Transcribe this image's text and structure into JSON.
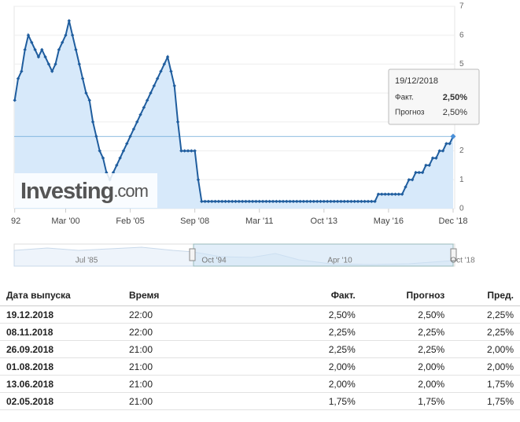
{
  "chart_data": {
    "type": "line",
    "categories": [
      "92",
      null,
      null,
      null,
      null,
      null,
      null,
      null,
      null,
      null,
      null,
      null,
      null,
      null,
      null,
      "Mar '00",
      null,
      null,
      null,
      null,
      null,
      null,
      null,
      null,
      null,
      null,
      null,
      null,
      null,
      null,
      null,
      null,
      null,
      null,
      "Feb '05",
      null,
      null,
      null,
      null,
      null,
      null,
      null,
      null,
      null,
      null,
      null,
      null,
      null,
      null,
      null,
      null,
      null,
      null,
      "Sep '08",
      null,
      null,
      null,
      null,
      null,
      null,
      null,
      null,
      null,
      null,
      null,
      null,
      null,
      null,
      null,
      null,
      null,
      null,
      "Mar '11",
      null,
      null,
      null,
      null,
      null,
      null,
      null,
      null,
      null,
      null,
      null,
      null,
      null,
      null,
      null,
      null,
      null,
      null,
      "Oct '13",
      null,
      null,
      null,
      null,
      null,
      null,
      null,
      null,
      null,
      null,
      null,
      null,
      null,
      null,
      null,
      null,
      null,
      null,
      "May '16",
      null,
      null,
      null,
      null,
      null,
      null,
      null,
      null,
      null,
      null,
      null,
      null,
      null,
      null,
      null,
      null,
      null,
      null,
      "Dec '18"
    ],
    "series": [
      {
        "color": "#1f5d9e",
        "values": [
          3.75,
          4.5,
          4.75,
          5.5,
          6.0,
          5.75,
          5.5,
          5.25,
          5.5,
          5.25,
          5.0,
          4.75,
          5.0,
          5.5,
          5.75,
          6.0,
          6.5,
          6.0,
          5.5,
          5.0,
          4.5,
          4.0,
          3.75,
          3.0,
          2.5,
          2.0,
          1.75,
          1.25,
          1.0,
          1.25,
          1.5,
          1.75,
          2.0,
          2.25,
          2.5,
          2.75,
          3.0,
          3.25,
          3.5,
          3.75,
          4.0,
          4.25,
          4.5,
          4.75,
          5.0,
          5.25,
          4.75,
          4.25,
          3.0,
          2.0,
          2.0,
          2.0,
          2.0,
          2.0,
          1.0,
          0.25,
          0.25,
          0.25,
          0.25,
          0.25,
          0.25,
          0.25,
          0.25,
          0.25,
          0.25,
          0.25,
          0.25,
          0.25,
          0.25,
          0.25,
          0.25,
          0.25,
          0.25,
          0.25,
          0.25,
          0.25,
          0.25,
          0.25,
          0.25,
          0.25,
          0.25,
          0.25,
          0.25,
          0.25,
          0.25,
          0.25,
          0.25,
          0.25,
          0.25,
          0.25,
          0.25,
          0.25,
          0.25,
          0.25,
          0.25,
          0.25,
          0.25,
          0.25,
          0.25,
          0.25,
          0.25,
          0.25,
          0.25,
          0.25,
          0.25,
          0.25,
          0.25,
          0.5,
          0.5,
          0.5,
          0.5,
          0.5,
          0.5,
          0.5,
          0.5,
          0.75,
          1.0,
          1.0,
          1.25,
          1.25,
          1.25,
          1.5,
          1.5,
          1.75,
          1.75,
          2.0,
          2.0,
          2.25,
          2.25,
          2.5
        ]
      }
    ],
    "ylim": [
      0,
      7
    ],
    "yticks": [
      0,
      1,
      2,
      3,
      4,
      5,
      6,
      7
    ],
    "navigator_labels": [
      "Jul '85",
      "Oct '94",
      "Apr '10",
      "Oct '18"
    ],
    "watermark": "Investing",
    "watermark_suffix": ".com",
    "tooltip": {
      "date": "19/12/2018",
      "rows": [
        [
          "Факт.",
          "2,50%"
        ],
        [
          "Прогноз",
          "2,50%"
        ]
      ]
    }
  },
  "table": {
    "header": [
      "Дата выпуска",
      "Время",
      "Факт.",
      "Прогноз",
      "Пред."
    ],
    "rows": [
      [
        "19.12.2018",
        "22:00",
        "2,50%",
        "2,50%",
        "2,25%"
      ],
      [
        "08.11.2018",
        "22:00",
        "2,25%",
        "2,25%",
        "2,25%"
      ],
      [
        "26.09.2018",
        "21:00",
        "2,25%",
        "2,25%",
        "2,00%"
      ],
      [
        "01.08.2018",
        "21:00",
        "2,00%",
        "2,00%",
        "2,00%"
      ],
      [
        "13.06.2018",
        "21:00",
        "2,00%",
        "2,00%",
        "1,75%"
      ],
      [
        "02.05.2018",
        "21:00",
        "1,75%",
        "1,75%",
        "1,75%"
      ]
    ]
  }
}
